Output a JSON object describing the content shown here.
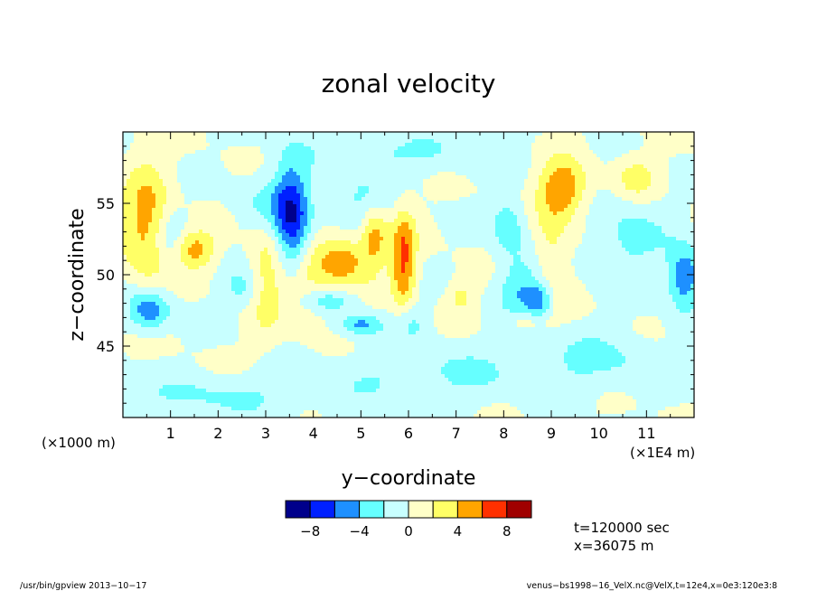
{
  "chart_data": {
    "type": "heatmap",
    "title": "zonal velocity",
    "xlabel": "y−coordinate",
    "ylabel": "z−coordinate",
    "x_units_left": "(×1000 m)",
    "x_units_right": "(×1E4 m)",
    "xlim": [
      0,
      12
    ],
    "ylim": [
      40,
      60
    ],
    "x_ticks": [
      1,
      2,
      3,
      4,
      5,
      6,
      7,
      8,
      9,
      10,
      11
    ],
    "x_tick_labels": [
      "1",
      "2",
      "3",
      "4",
      "5",
      "6",
      "7",
      "8",
      "9",
      "10",
      "11"
    ],
    "y_ticks": [
      45,
      50,
      55
    ],
    "y_tick_labels": [
      "45",
      "50",
      "55"
    ],
    "colorbar": {
      "levels": [
        -10,
        -8,
        -6,
        -4,
        -2,
        0,
        2,
        4,
        6,
        8,
        10
      ],
      "colors": [
        "#00008b",
        "#0020ff",
        "#1e90ff",
        "#66ffff",
        "#c8ffff",
        "#ffffc8",
        "#ffff66",
        "#ffa500",
        "#ff3000",
        "#a00000"
      ],
      "tick_values": [
        -8,
        -4,
        0,
        4,
        8
      ],
      "tick_labels": [
        "−8",
        "−4",
        "0",
        "4",
        "8"
      ]
    },
    "blobs": [
      {
        "x": 0.5,
        "z": 53.5,
        "sx": 0.35,
        "sz": 3.0,
        "a": 5.0
      },
      {
        "x": 1.5,
        "z": 51.8,
        "sx": 0.3,
        "sz": 0.9,
        "a": 5.0
      },
      {
        "x": 1.0,
        "z": 52.5,
        "sx": 0.25,
        "sz": 1.5,
        "a": -2.5
      },
      {
        "x": 0.55,
        "z": 47.5,
        "sx": 0.3,
        "sz": 1.0,
        "a": -6.0
      },
      {
        "x": 3.0,
        "z": 50.0,
        "sx": 0.25,
        "sz": 3.0,
        "a": 3.0
      },
      {
        "x": 2.5,
        "z": 49.0,
        "sx": 0.3,
        "sz": 1.0,
        "a": -2.5
      },
      {
        "x": 3.55,
        "z": 53.5,
        "sx": 0.25,
        "sz": 3.0,
        "a": -6.5
      },
      {
        "x": 3.2,
        "z": 55.0,
        "sx": 0.5,
        "sz": 1.5,
        "a": -3.0
      },
      {
        "x": 3.7,
        "z": 49.0,
        "sx": 0.35,
        "sz": 2.0,
        "a": 3.0
      },
      {
        "x": 4.6,
        "z": 51.0,
        "sx": 0.4,
        "sz": 1.3,
        "a": 5.5
      },
      {
        "x": 4.3,
        "z": 48.2,
        "sx": 0.45,
        "sz": 0.6,
        "a": -3.0
      },
      {
        "x": 5.0,
        "z": 46.5,
        "sx": 0.3,
        "sz": 0.5,
        "a": -4.5
      },
      {
        "x": 5.3,
        "z": 52.8,
        "sx": 0.2,
        "sz": 1.5,
        "a": 5.0
      },
      {
        "x": 5.0,
        "z": 55.0,
        "sx": 0.5,
        "sz": 1.5,
        "a": -2.5
      },
      {
        "x": 5.9,
        "z": 51.0,
        "sx": 0.18,
        "sz": 2.5,
        "a": 6.5
      },
      {
        "x": 6.05,
        "z": 46.8,
        "sx": 0.25,
        "sz": 1.0,
        "a": -2.5
      },
      {
        "x": 7.1,
        "z": 48.5,
        "sx": 0.2,
        "sz": 0.8,
        "a": 2.5
      },
      {
        "x": 8.1,
        "z": 53.5,
        "sx": 0.25,
        "sz": 1.5,
        "a": -3.5
      },
      {
        "x": 8.3,
        "z": 49.0,
        "sx": 0.3,
        "sz": 1.5,
        "a": -3.5
      },
      {
        "x": 8.75,
        "z": 48.2,
        "sx": 0.2,
        "sz": 1.0,
        "a": -5.0
      },
      {
        "x": 8.5,
        "z": 46.8,
        "sx": 0.35,
        "sz": 0.5,
        "a": 2.5
      },
      {
        "x": 9.25,
        "z": 56.0,
        "sx": 0.35,
        "sz": 1.5,
        "a": 6.0
      },
      {
        "x": 9.0,
        "z": 51.5,
        "sx": 0.25,
        "sz": 2.5,
        "a": 2.5
      },
      {
        "x": 10.6,
        "z": 52.5,
        "sx": 0.6,
        "sz": 2.0,
        "a": -2.5
      },
      {
        "x": 10.8,
        "z": 56.8,
        "sx": 0.3,
        "sz": 1.0,
        "a": 3.0
      },
      {
        "x": 11.8,
        "z": 49.8,
        "sx": 0.25,
        "sz": 1.5,
        "a": -6.0
      },
      {
        "x": 6.5,
        "z": 43.0,
        "sx": 1.5,
        "sz": 1.5,
        "a": -2.2
      },
      {
        "x": 2.0,
        "z": 41.5,
        "sx": 1.5,
        "sz": 1.0,
        "a": -2.2
      },
      {
        "x": 10.0,
        "z": 44.0,
        "sx": 1.0,
        "sz": 1.5,
        "a": -2.2
      },
      {
        "x": 6.0,
        "z": 58.5,
        "sx": 1.5,
        "sz": 1.0,
        "a": -2.2
      }
    ]
  },
  "info": {
    "time": "t=120000 sec",
    "position": "x=36075 m"
  },
  "footer": {
    "left": "/usr/bin/gpview   2013−10−17",
    "right": "venus−bs1998−16_VelX.nc@VelX,t=12e4,x=0e3:120e3:8"
  }
}
